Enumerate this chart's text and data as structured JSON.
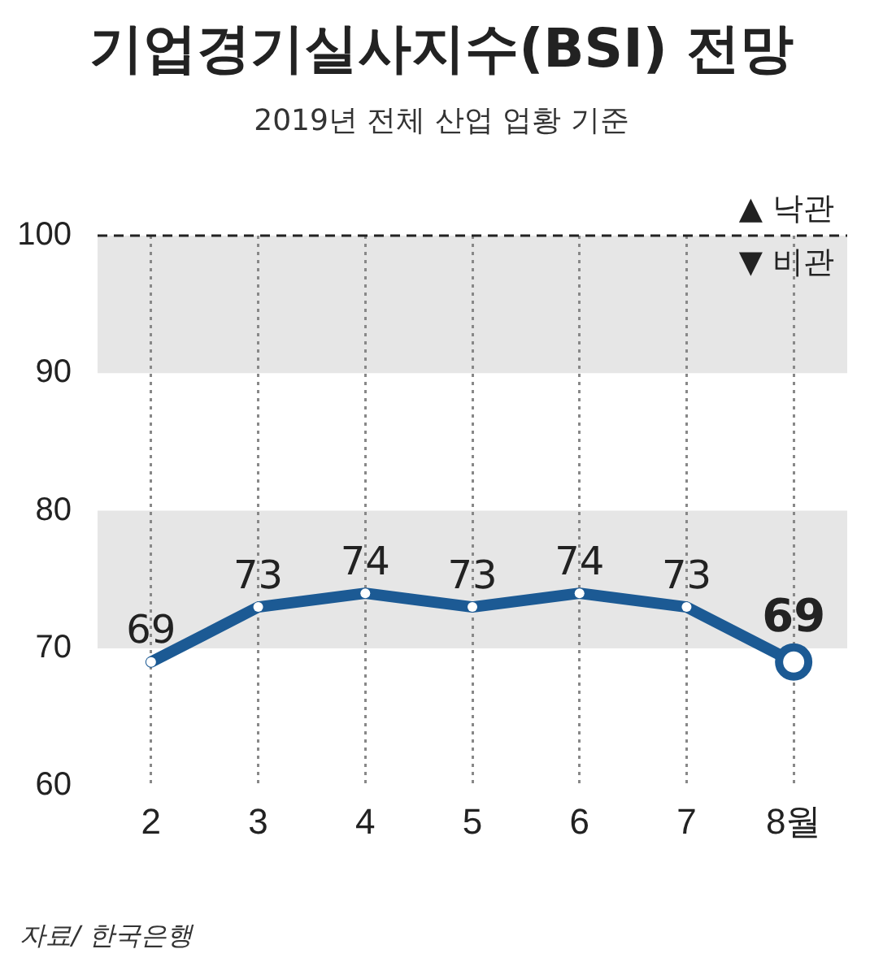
{
  "chart_data": {
    "type": "line",
    "title": "기업경기실사지수(BSI) 전망",
    "subtitle": "2019년 전체 산업 업황 기준",
    "categories": [
      "2",
      "3",
      "4",
      "5",
      "6",
      "7",
      "8월"
    ],
    "series": [
      {
        "color": "#1c5a94",
        "values": [
          69,
          73,
          74,
          73,
          74,
          73,
          69
        ]
      }
    ],
    "ylim": [
      60,
      100
    ],
    "yticks": [
      60,
      70,
      80,
      90,
      100
    ],
    "bands": [
      {
        "axis": "y",
        "from": 90,
        "to": 100,
        "color": "#e6e6e6"
      },
      {
        "axis": "y",
        "from": 70,
        "to": 80,
        "color": "#e6e6e6"
      }
    ],
    "ref_lines": [
      {
        "axis": "y",
        "value": 100,
        "line_style": "dashed",
        "color": "#222222"
      }
    ],
    "annotations": [
      {
        "text": "▲ 낙관",
        "y": 100
      },
      {
        "text": "▼ 비관",
        "y": 100
      },
      "자료/ 한국은행"
    ],
    "data_labels": true,
    "grid": "x",
    "marker": "circle",
    "line_style": "solid",
    "legend": false
  }
}
